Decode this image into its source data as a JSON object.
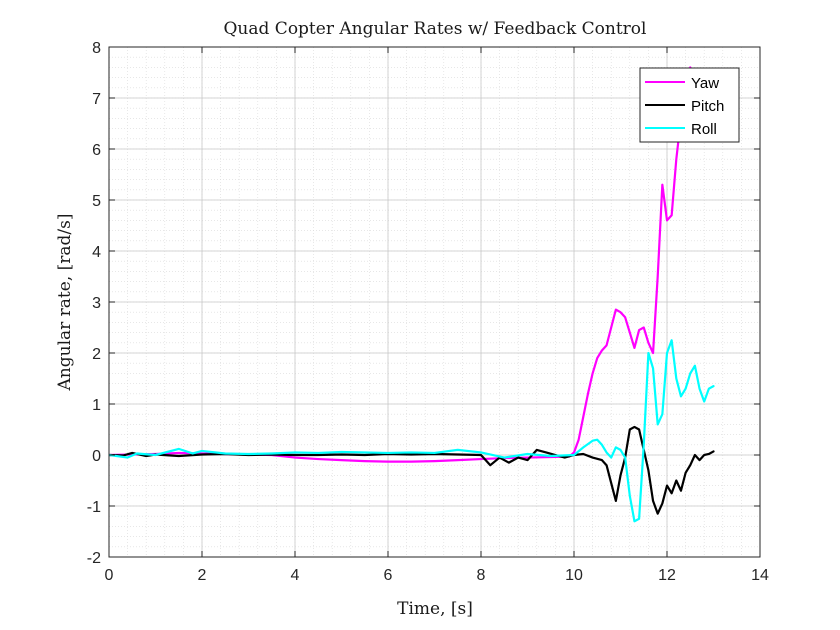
{
  "chart_data": {
    "type": "line",
    "title": "Quad Copter Angular Rates w/ Feedback Control",
    "xlabel": "Time, [s]",
    "ylabel": "Angular rate, [rad/s]",
    "xlim": [
      0,
      14
    ],
    "ylim": [
      -2,
      8
    ],
    "xticks": [
      0,
      2,
      4,
      6,
      8,
      10,
      12,
      14
    ],
    "yticks": [
      -2,
      -1,
      0,
      1,
      2,
      3,
      4,
      5,
      6,
      7,
      8
    ],
    "grid": true,
    "minor_grid": true,
    "legend_position": "top-right",
    "series": [
      {
        "name": "Yaw",
        "color": "#ff00ff",
        "x": [
          0,
          0.5,
          1,
          1.5,
          2,
          2.5,
          3,
          3.5,
          4,
          4.5,
          5,
          5.5,
          6,
          6.5,
          7,
          7.5,
          8,
          8.5,
          9,
          9.5,
          9.9,
          10.0,
          10.1,
          10.2,
          10.3,
          10.4,
          10.5,
          10.6,
          10.7,
          10.8,
          10.9,
          11.0,
          11.1,
          11.2,
          11.3,
          11.4,
          11.5,
          11.6,
          11.7,
          11.8,
          11.9,
          12.0,
          12.1,
          12.2,
          12.3,
          12.4,
          12.5
        ],
        "y": [
          0,
          0.01,
          0.02,
          0.04,
          0.03,
          0.02,
          0.01,
          0.0,
          -0.05,
          -0.08,
          -0.1,
          -0.12,
          -0.13,
          -0.13,
          -0.12,
          -0.1,
          -0.08,
          -0.06,
          -0.05,
          -0.04,
          -0.03,
          0.05,
          0.3,
          0.75,
          1.2,
          1.6,
          1.9,
          2.05,
          2.15,
          2.5,
          2.85,
          2.8,
          2.7,
          2.4,
          2.1,
          2.45,
          2.5,
          2.2,
          2.0,
          3.5,
          5.3,
          4.6,
          4.7,
          5.8,
          6.6,
          7.2,
          7.6
        ]
      },
      {
        "name": "Pitch",
        "color": "#000000",
        "x": [
          0,
          0.3,
          0.5,
          0.8,
          1,
          1.5,
          2,
          2.5,
          3,
          3.5,
          4,
          4.5,
          5,
          5.5,
          6,
          6.5,
          7,
          7.5,
          8,
          8.1,
          8.2,
          8.4,
          8.6,
          8.8,
          9.0,
          9.2,
          9.4,
          9.6,
          9.8,
          10.0,
          10.2,
          10.4,
          10.6,
          10.7,
          10.8,
          10.9,
          11.0,
          11.1,
          11.2,
          11.3,
          11.4,
          11.5,
          11.6,
          11.7,
          11.8,
          11.9,
          12.0,
          12.1,
          12.2,
          12.3,
          12.4,
          12.5,
          12.6,
          12.7,
          12.8,
          12.9,
          13.0
        ],
        "y": [
          0,
          -0.01,
          0.04,
          -0.02,
          0.01,
          -0.02,
          0.01,
          0.02,
          0.0,
          0.01,
          0.0,
          0.0,
          0.01,
          0.0,
          0.02,
          0.01,
          0.02,
          0.01,
          0.0,
          -0.1,
          -0.2,
          -0.05,
          -0.15,
          -0.05,
          -0.1,
          0.1,
          0.05,
          0.0,
          -0.05,
          0.0,
          0.02,
          -0.05,
          -0.1,
          -0.2,
          -0.55,
          -0.9,
          -0.4,
          -0.05,
          0.5,
          0.55,
          0.5,
          0.1,
          -0.3,
          -0.9,
          -1.15,
          -0.95,
          -0.6,
          -0.75,
          -0.5,
          -0.7,
          -0.35,
          -0.2,
          0.0,
          -0.1,
          0.0,
          0.02,
          0.07
        ]
      },
      {
        "name": "Roll",
        "color": "#00ffff",
        "x": [
          0,
          0.4,
          0.6,
          1,
          1.5,
          1.8,
          2,
          2.5,
          3,
          3.5,
          4,
          4.5,
          5,
          5.5,
          6,
          6.5,
          7,
          7.5,
          8,
          8.5,
          9,
          9.5,
          10.0,
          10.2,
          10.4,
          10.5,
          10.6,
          10.7,
          10.8,
          10.9,
          11.0,
          11.1,
          11.2,
          11.3,
          11.4,
          11.5,
          11.6,
          11.7,
          11.8,
          11.9,
          12.0,
          12.1,
          12.2,
          12.3,
          12.4,
          12.5,
          12.6,
          12.7,
          12.8,
          12.9,
          13.0
        ],
        "y": [
          0,
          -0.05,
          0.03,
          0.0,
          0.12,
          0.03,
          0.08,
          0.03,
          0.02,
          0.03,
          0.05,
          0.04,
          0.06,
          0.05,
          0.04,
          0.05,
          0.04,
          0.1,
          0.05,
          -0.05,
          0.02,
          -0.02,
          0.0,
          0.15,
          0.28,
          0.3,
          0.2,
          0.05,
          -0.05,
          0.15,
          0.1,
          -0.05,
          -0.8,
          -1.3,
          -1.25,
          0.2,
          2.0,
          1.7,
          0.6,
          0.8,
          2.0,
          2.25,
          1.5,
          1.15,
          1.3,
          1.6,
          1.75,
          1.3,
          1.05,
          1.3,
          1.35
        ]
      }
    ]
  }
}
